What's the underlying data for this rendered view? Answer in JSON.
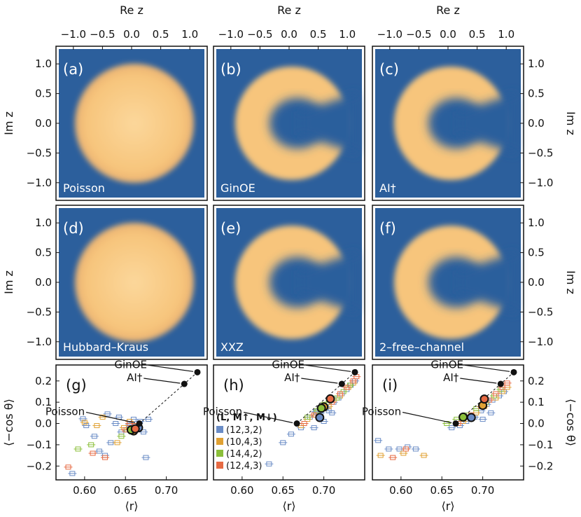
{
  "chart_data": {
    "density_plots": {
      "type": "heatmap",
      "xlabel": "Re z",
      "ylabel": "Im z",
      "x_ticks": [
        "−1.0",
        "−0.5",
        "0.0",
        "0.5",
        "1.0"
      ],
      "y_ticks": [
        "1.0",
        "0.5",
        "0.0",
        "−0.5",
        "−1.0"
      ],
      "xlim": [
        -1.25,
        1.25
      ],
      "ylim": [
        -1.25,
        1.25
      ],
      "panels": [
        {
          "label": "(a)",
          "name": "Poisson",
          "shape": "disk"
        },
        {
          "label": "(b)",
          "name": "GinOE",
          "shape": "ring"
        },
        {
          "label": "(c)",
          "name": "AI†",
          "shape": "ring"
        },
        {
          "label": "(d)",
          "name": "Hubbard–Kraus",
          "shape": "disk"
        },
        {
          "label": "(e)",
          "name": "XXZ",
          "shape": "ring"
        },
        {
          "label": "(f)",
          "name": "2–free–channel",
          "shape": "ring"
        }
      ]
    },
    "scatter_plots": {
      "type": "scatter",
      "xlabel": "⟨r⟩",
      "ylabel": "⟨−cos θ⟩",
      "xlim": [
        0.565,
        0.75
      ],
      "ylim": [
        -0.265,
        0.275
      ],
      "x_ticks": [
        0.6,
        0.65,
        0.7
      ],
      "y_ticks": [
        0.2,
        0.1,
        0.0,
        -0.1,
        -0.2
      ],
      "x_tick_labels": [
        "0.60",
        "0.65",
        "0.70"
      ],
      "y_tick_labels": [
        "0.2",
        "0.1",
        "0.0",
        "−0.1",
        "−0.2"
      ],
      "reference_points": [
        {
          "name": "Poisson",
          "r": 0.667,
          "cos": 0.0
        },
        {
          "name": "AI†",
          "r": 0.722,
          "cos": 0.186
        },
        {
          "name": "GinOE",
          "r": 0.738,
          "cos": 0.241
        }
      ],
      "legend_title": "(L, M↑, M↓)",
      "series": [
        {
          "name": "(12,3,2)",
          "color": "#6a8cc6"
        },
        {
          "name": "(10,4,3)",
          "color": "#e0a133"
        },
        {
          "name": "(14,4,2)",
          "color": "#8bbf3a"
        },
        {
          "name": "(12,4,3)",
          "color": "#e66a43"
        }
      ],
      "panels": [
        {
          "label": "(g)",
          "series_points": [
            [
              [
                0.585,
                -0.235
              ],
              [
                0.598,
                0.022
              ],
              [
                0.602,
                -0.01
              ],
              [
                0.612,
                -0.06
              ],
              [
                0.618,
                -0.13
              ],
              [
                0.625,
                -0.15
              ],
              [
                0.628,
                0.045
              ],
              [
                0.632,
                -0.09
              ],
              [
                0.638,
                0.0
              ],
              [
                0.642,
                0.03
              ],
              [
                0.645,
                -0.04
              ],
              [
                0.655,
                -0.005
              ],
              [
                0.66,
                0.02
              ],
              [
                0.668,
                0.01
              ],
              [
                0.672,
                -0.04
              ],
              [
                0.675,
                -0.16
              ],
              [
                0.678,
                0.02
              ],
              [
                0.662,
                -0.03
              ]
            ],
            [
              [
                0.6,
                0.005
              ],
              [
                0.615,
                -0.01
              ],
              [
                0.622,
                0.03
              ],
              [
                0.64,
                -0.09
              ],
              [
                0.648,
                -0.02
              ],
              [
                0.655,
                0.01
              ],
              [
                0.663,
                -0.025
              ]
            ],
            [
              [
                0.592,
                -0.12
              ],
              [
                0.608,
                -0.1
              ],
              [
                0.645,
                -0.06
              ],
              [
                0.652,
                -0.03
              ],
              [
                0.658,
                -0.04
              ]
            ],
            [
              [
                0.58,
                -0.205
              ],
              [
                0.61,
                -0.14
              ],
              [
                0.625,
                -0.16
              ],
              [
                0.65,
                -0.03
              ],
              [
                0.655,
                0.0
              ],
              [
                0.662,
                -0.01
              ]
            ]
          ],
          "averages": [
            {
              "r": 0.666,
              "cos": -0.02,
              "series": 0
            },
            {
              "r": 0.66,
              "cos": -0.035,
              "series": 1
            },
            {
              "r": 0.657,
              "cos": -0.03,
              "series": 2
            },
            {
              "r": 0.662,
              "cos": -0.025,
              "series": 3
            }
          ]
        },
        {
          "label": "(h)",
          "series_points": [
            [
              [
                0.633,
                -0.19
              ],
              [
                0.65,
                -0.09
              ],
              [
                0.66,
                -0.05
              ],
              [
                0.672,
                -0.02
              ],
              [
                0.683,
                0.03
              ],
              [
                0.69,
                0.055
              ],
              [
                0.696,
                0.05
              ],
              [
                0.703,
                0.075
              ],
              [
                0.706,
                0.06
              ],
              [
                0.712,
                0.1
              ],
              [
                0.718,
                0.12
              ],
              [
                0.722,
                0.14
              ],
              [
                0.728,
                0.16
              ],
              [
                0.733,
                0.18
              ],
              [
                0.738,
                0.2
              ],
              [
                0.7,
                0.01
              ],
              [
                0.71,
                0.05
              ],
              [
                0.688,
                -0.02
              ]
            ],
            [
              [
                0.672,
                -0.01
              ],
              [
                0.68,
                0.02
              ],
              [
                0.69,
                0.04
              ],
              [
                0.7,
                0.07
              ],
              [
                0.712,
                0.11
              ],
              [
                0.72,
                0.13
              ],
              [
                0.73,
                0.17
              ],
              [
                0.736,
                0.19
              ],
              [
                0.706,
                0.08
              ]
            ],
            [
              [
                0.68,
                0.03
              ],
              [
                0.692,
                0.06
              ],
              [
                0.7,
                0.09
              ],
              [
                0.706,
                0.1
              ],
              [
                0.716,
                0.12
              ],
              [
                0.724,
                0.15
              ],
              [
                0.732,
                0.18
              ]
            ],
            [
              [
                0.676,
                0.0
              ],
              [
                0.688,
                0.04
              ],
              [
                0.698,
                0.07
              ],
              [
                0.71,
                0.1
              ],
              [
                0.72,
                0.14
              ],
              [
                0.728,
                0.17
              ],
              [
                0.736,
                0.2
              ],
              [
                0.74,
                0.22
              ]
            ]
          ],
          "averages": [
            {
              "r": 0.695,
              "cos": 0.028,
              "series": 0
            },
            {
              "r": 0.7,
              "cos": 0.078,
              "series": 1
            },
            {
              "r": 0.697,
              "cos": 0.072,
              "series": 2
            },
            {
              "r": 0.708,
              "cos": 0.116,
              "series": 3
            }
          ]
        },
        {
          "label": "(i)",
          "series_points": [
            [
              [
                0.572,
                -0.08
              ],
              [
                0.585,
                -0.12
              ],
              [
                0.598,
                -0.12
              ],
              [
                0.608,
                -0.11
              ],
              [
                0.618,
                -0.12
              ],
              [
                0.662,
                -0.02
              ],
              [
                0.672,
                -0.01
              ],
              [
                0.68,
                0.01
              ],
              [
                0.69,
                0.03
              ],
              [
                0.698,
                0.06
              ],
              [
                0.705,
                0.09
              ],
              [
                0.712,
                0.11
              ],
              [
                0.72,
                0.13
              ],
              [
                0.726,
                0.15
              ],
              [
                0.7,
                0.02
              ],
              [
                0.71,
                0.05
              ]
            ],
            [
              [
                0.575,
                -0.15
              ],
              [
                0.603,
                -0.14
              ],
              [
                0.628,
                -0.15
              ],
              [
                0.676,
                0.01
              ],
              [
                0.692,
                0.05
              ],
              [
                0.702,
                0.08
              ],
              [
                0.716,
                0.12
              ],
              [
                0.724,
                0.15
              ],
              [
                0.73,
                0.17
              ]
            ],
            [
              [
                0.656,
                0.0
              ],
              [
                0.668,
                0.02
              ],
              [
                0.68,
                0.04
              ],
              [
                0.692,
                0.07
              ],
              [
                0.704,
                0.1
              ],
              [
                0.714,
                0.13
              ],
              [
                0.722,
                0.16
              ]
            ],
            [
              [
                0.59,
                -0.16
              ],
              [
                0.606,
                -0.12
              ],
              [
                0.67,
                0.0
              ],
              [
                0.686,
                0.04
              ],
              [
                0.698,
                0.08
              ],
              [
                0.708,
                0.11
              ],
              [
                0.716,
                0.14
              ],
              [
                0.724,
                0.17
              ],
              [
                0.73,
                0.19
              ]
            ]
          ],
          "averages": [
            {
              "r": 0.686,
              "cos": 0.028,
              "series": 0
            },
            {
              "r": 0.7,
              "cos": 0.085,
              "series": 1
            },
            {
              "r": 0.676,
              "cos": 0.03,
              "series": 2
            },
            {
              "r": 0.702,
              "cos": 0.115,
              "series": 3
            }
          ]
        }
      ]
    }
  }
}
